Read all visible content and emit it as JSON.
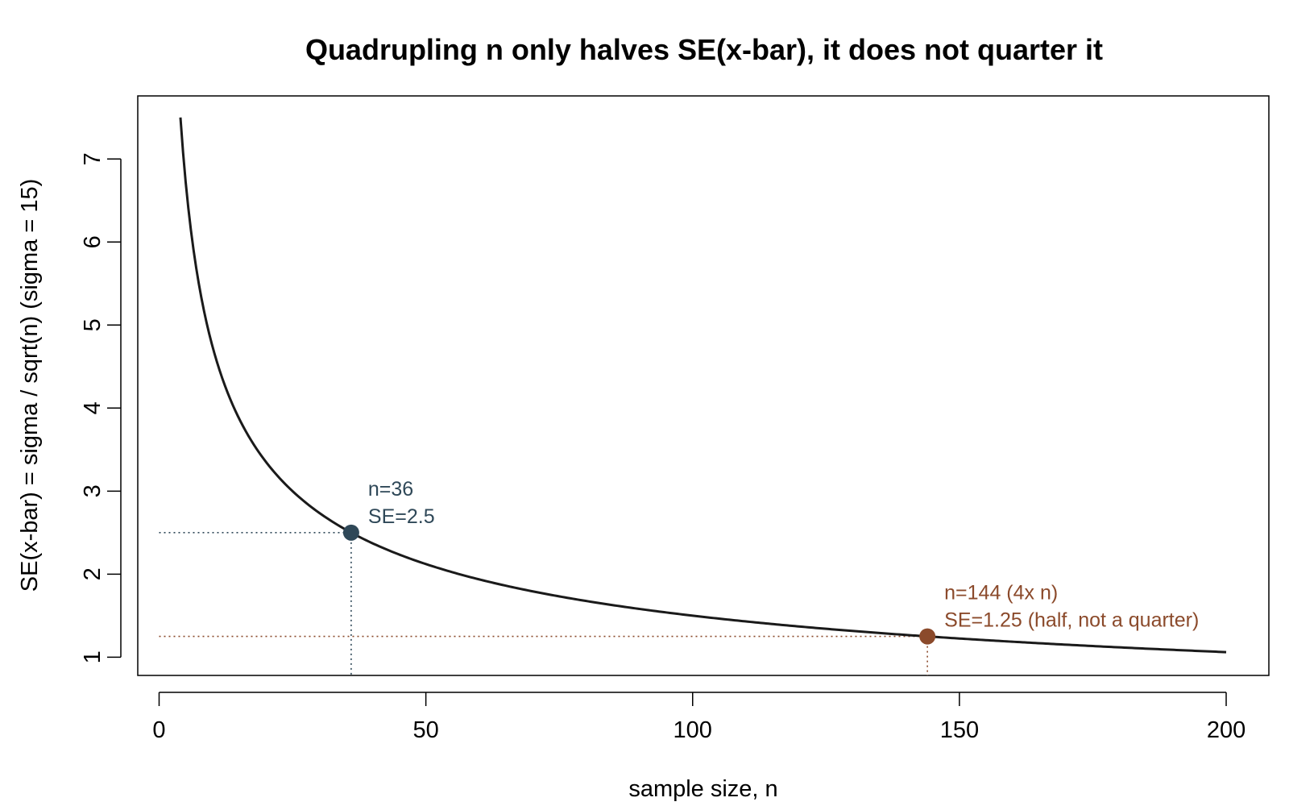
{
  "chart_data": {
    "type": "line",
    "title": "Quadrupling n only halves SE(x-bar), it does not quarter it",
    "xlabel": "sample size, n",
    "ylabel": "SE(x-bar) = sigma / sqrt(n)  (sigma = 15)",
    "xlim": [
      -4,
      208
    ],
    "ylim": [
      0.78,
      7.76
    ],
    "x_ticks": [
      0,
      50,
      100,
      150,
      200
    ],
    "y_ticks": [
      1,
      2,
      3,
      4,
      5,
      6,
      7
    ],
    "grid": false,
    "series": [
      {
        "sigma": 15,
        "n_range": [
          4,
          200
        ],
        "color": "#1a1a1a"
      }
    ],
    "highlights": [
      {
        "n": 36,
        "se": 2.5,
        "color": "#2f4858",
        "label_line1": "n=36",
        "label_line2": "SE=2.5"
      },
      {
        "n": 144,
        "se": 1.25,
        "color": "#8b4a2b",
        "label_line1": "n=144 (4x n)",
        "label_line2": "SE=1.25 (half, not a quarter)"
      }
    ]
  }
}
